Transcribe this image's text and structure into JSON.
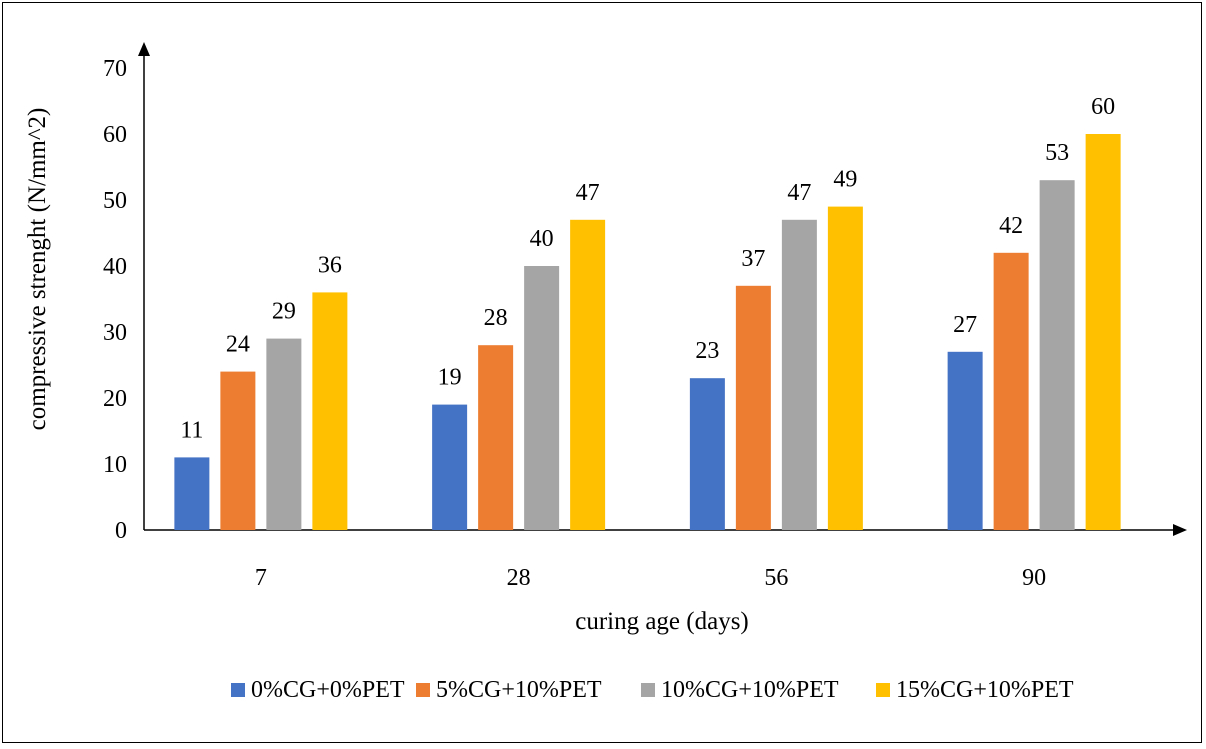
{
  "chart_data": {
    "type": "bar",
    "xlabel": "curing age (days)",
    "ylabel": "compressive strenght (N/mm^2)",
    "categories": [
      "7",
      "28",
      "56",
      "90"
    ],
    "ylim": [
      0,
      70
    ],
    "yticks": [
      "0",
      "10",
      "20",
      "30",
      "40",
      "50",
      "60",
      "70"
    ],
    "grid": false,
    "legend_position": "bottom",
    "series": [
      {
        "name": "0%CG+0%PET",
        "color": "#4472C4",
        "values": [
          11,
          19,
          23,
          27
        ]
      },
      {
        "name": "5%CG+10%PET",
        "color": "#ED7D31",
        "values": [
          24,
          28,
          37,
          42
        ]
      },
      {
        "name": "10%CG+10%PET",
        "color": "#A5A5A5",
        "values": [
          29,
          40,
          47,
          53
        ]
      },
      {
        "name": "15%CG+10%PET",
        "color": "#FFC000",
        "values": [
          36,
          47,
          49,
          60
        ]
      }
    ]
  }
}
